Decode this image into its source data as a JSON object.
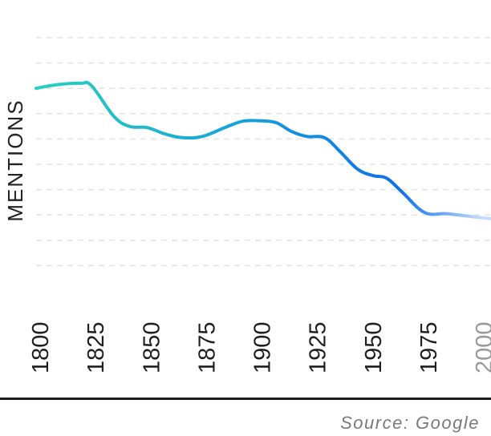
{
  "chart_data": {
    "type": "line",
    "title": "",
    "xlabel": "",
    "ylabel": "MENTIONS",
    "x_ticks": [
      "1800",
      "1825",
      "1850",
      "1875",
      "1900",
      "1925",
      "1950",
      "1975",
      "2000"
    ],
    "faded_ticks": [
      "2000"
    ],
    "xlim": [
      1800,
      2005
    ],
    "ylim": [
      0,
      10
    ],
    "grid": true,
    "series": [
      {
        "x": [
          1800,
          1810,
          1820,
          1825,
          1835,
          1842,
          1850,
          1858,
          1866,
          1875,
          1885,
          1893,
          1900,
          1908,
          1915,
          1922,
          1930,
          1937,
          1945,
          1952,
          1958,
          1965,
          1975,
          1985,
          1995,
          2005
        ],
        "y": [
          8.0,
          8.15,
          8.2,
          8.1,
          6.9,
          6.5,
          6.45,
          6.2,
          6.05,
          6.1,
          6.45,
          6.7,
          6.72,
          6.65,
          6.3,
          6.1,
          6.05,
          5.5,
          4.8,
          4.55,
          4.45,
          3.9,
          3.1,
          3.05,
          2.95,
          2.85
        ],
        "colors": {
          "start": "#2ad1bf",
          "mid": "#17a3d8",
          "end": "#0f6fe8",
          "fade": "#c4dcff"
        }
      }
    ],
    "source": "Source: Google"
  }
}
